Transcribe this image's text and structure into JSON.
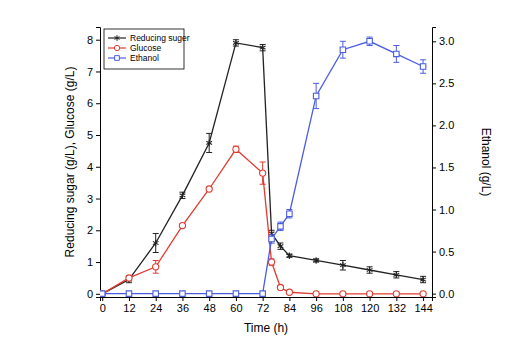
{
  "chart_data": {
    "type": "line",
    "x_label": "Time (h)",
    "y_label": "Reducing sugar (g/L), Glucose (g/L)",
    "y2_label": "Ethanol (g/L)",
    "x": [
      0,
      12,
      24,
      36,
      48,
      60,
      72,
      76,
      80,
      84,
      96,
      108,
      120,
      132,
      144
    ],
    "xlim": [
      -1,
      148
    ],
    "xticks": [
      0,
      12,
      24,
      36,
      48,
      60,
      72,
      84,
      96,
      108,
      120,
      132,
      144
    ],
    "ylim": [
      -0.1,
      8.4
    ],
    "yticks": [
      0,
      1,
      2,
      3,
      4,
      5,
      6,
      7,
      8
    ],
    "y2lim": [
      -0.04,
      3.17
    ],
    "y2ticks": [
      {
        "value": 0,
        "label": "0.0"
      },
      0.5,
      {
        "value": 1,
        "label": "1.0"
      },
      1.5,
      {
        "value": 2,
        "label": "2.0"
      },
      2.5,
      {
        "value": 3,
        "label": "3.0"
      }
    ],
    "legend": "upper left",
    "grid": false,
    "series": [
      {
        "name": "Reducing suger",
        "color": "#222222",
        "marker": "asterisk",
        "line_style": "solid",
        "values": [
          0,
          0.45,
          1.6,
          3.1,
          4.75,
          7.9,
          7.75,
          1.9,
          1.5,
          1.2,
          1.05,
          0.9,
          0.75,
          0.6,
          0.45
        ],
        "errors": [
          0,
          0.1,
          0.3,
          0.1,
          0.3,
          0.1,
          0.1,
          0.1,
          0.1,
          0.05,
          0.05,
          0.15,
          0.1,
          0.1,
          0.1
        ]
      },
      {
        "name": "Glucose",
        "color": "#e03c31",
        "marker": "circle",
        "line_style": "solid",
        "values": [
          0,
          0.5,
          0.85,
          2.15,
          3.3,
          4.55,
          3.8,
          1.0,
          0.2,
          0.05,
          0,
          0,
          0,
          0,
          0
        ],
        "errors": [
          0,
          0.05,
          0.2,
          0.05,
          0.05,
          0.1,
          0.35,
          0.1,
          0.05,
          0.02,
          0,
          0,
          0,
          0,
          0
        ]
      },
      {
        "name": "Ethanol",
        "color": "#4a5de0",
        "marker": "square",
        "line_style": "solid",
        "axis": "y2",
        "values": [
          0,
          0,
          0,
          0,
          0,
          0,
          0,
          0.65,
          0.8,
          0.95,
          2.35,
          2.9,
          3.0,
          2.85,
          2.7
        ],
        "errors": [
          0,
          0,
          0,
          0,
          0,
          0,
          0,
          0.05,
          0.05,
          0.05,
          0.15,
          0.1,
          0.05,
          0.1,
          0.08
        ]
      }
    ]
  }
}
